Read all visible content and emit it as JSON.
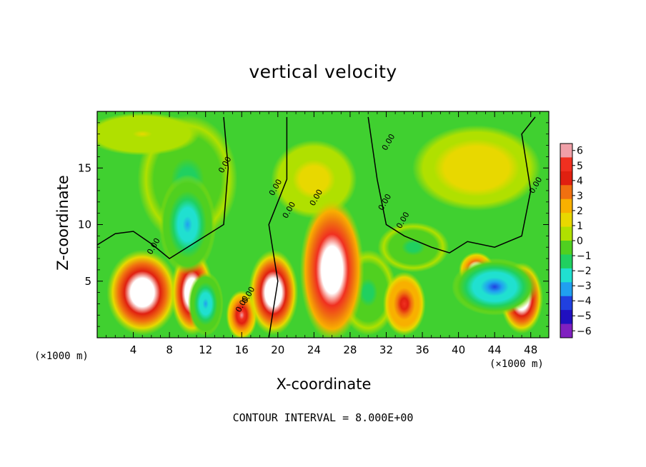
{
  "chart_data": {
    "type": "heatmap",
    "title": "vertical velocity",
    "xlabel": "X-coordinate",
    "ylabel": "Z-coordinate",
    "x_unit": "(×1000 m)",
    "footer": "CONTOUR INTERVAL = 8.000E+00",
    "xlim": [
      0,
      50
    ],
    "ylim": [
      0,
      20
    ],
    "x_ticks": [
      "4",
      "8",
      "12",
      "16",
      "20",
      "24",
      "28",
      "32",
      "36",
      "40",
      "44",
      "48"
    ],
    "y_ticks": [
      "5",
      "10",
      "15"
    ],
    "colorbar": {
      "range": [
        -6,
        6
      ],
      "ticks": [
        "6",
        "5",
        "4",
        "3",
        "2",
        "1",
        "0",
        "−1",
        "−2",
        "−3",
        "−4",
        "−5",
        "−6"
      ],
      "colors": [
        "#f0a0a8",
        "#f03020",
        "#e02010",
        "#f07010",
        "#f8b000",
        "#e8d800",
        "#b0e000",
        "#50d020",
        "#20d060",
        "#20e0d0",
        "#20a0f0",
        "#2040e0",
        "#2010c0",
        "#8020c0"
      ]
    },
    "contour_labels": [
      "0.00",
      "0.00",
      "0.00",
      "0.00",
      "0.00",
      "0.00",
      "0.00",
      "0.00",
      "0.00",
      "0.00",
      "0.00"
    ],
    "features": [
      {
        "kind": "updraft",
        "x": 5,
        "z": 4,
        "w": 8
      },
      {
        "kind": "updraft",
        "x": 10.5,
        "z": 4,
        "w": 8
      },
      {
        "kind": "updraft",
        "x": 26,
        "z": 6,
        "w": 10
      },
      {
        "kind": "updraft",
        "x": 16,
        "z": 2,
        "w": 6
      },
      {
        "kind": "updraft",
        "x": 19.5,
        "z": 4,
        "w": 8
      },
      {
        "kind": "updraft",
        "x": 34,
        "z": 3,
        "w": 5
      },
      {
        "kind": "updraft",
        "x": 47,
        "z": 3.5,
        "w": 8
      },
      {
        "kind": "updraft",
        "x": 42,
        "z": 6,
        "w": 7
      },
      {
        "kind": "downdraft",
        "x": 10,
        "z": 10,
        "w": -4
      },
      {
        "kind": "downdraft",
        "x": 44,
        "z": 4.5,
        "w": -5
      },
      {
        "kind": "downdraft",
        "x": 12,
        "z": 3,
        "w": -4
      }
    ]
  }
}
